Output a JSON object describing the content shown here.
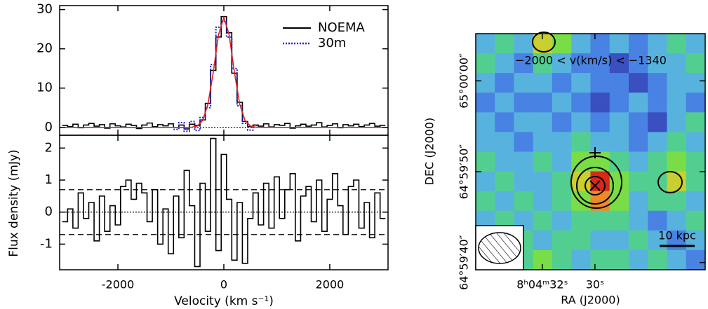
{
  "chart_data": [
    {
      "type": "step",
      "x": [
        -3000,
        -2900,
        -2800,
        -2700,
        -2600,
        -2500,
        -2400,
        -2300,
        -2200,
        -2100,
        -2000,
        -1900,
        -1800,
        -1700,
        -1600,
        -1500,
        -1400,
        -1300,
        -1200,
        -1100,
        -1000,
        -900,
        -800,
        -700,
        -600,
        -500,
        -400,
        -300,
        -200,
        -100,
        0,
        100,
        200,
        300,
        400,
        500,
        600,
        700,
        800,
        900,
        1000,
        1100,
        1200,
        1300,
        1400,
        1500,
        1600,
        1700,
        1800,
        1900,
        2000,
        2100,
        2200,
        2300,
        2400,
        2500,
        2600,
        2700,
        2800,
        2900,
        3000
      ],
      "series": [
        {
          "name": "NOEMA",
          "color": "#000000",
          "style": "solid",
          "drawstyle": "steps",
          "values": [
            0.5,
            0.2,
            0.8,
            -0.1,
            0.6,
            1.0,
            0.3,
            0.7,
            -0.2,
            0.9,
            0.4,
            0.1,
            0.8,
            0.5,
            -0.3,
            0.6,
            1.1,
            0.2,
            0.7,
            0.4,
            0.9,
            0.0,
            0.6,
            -0.4,
            0.8,
            0.5,
            1.9,
            6.1,
            14.5,
            23.0,
            28.2,
            24.1,
            13.8,
            6.4,
            1.5,
            0.2,
            0.6,
            0.3,
            0.9,
            0.1,
            0.7,
            0.5,
            1.0,
            -0.2,
            0.4,
            0.8,
            0.3,
            0.6,
            1.2,
            0.1,
            0.5,
            0.9,
            -0.1,
            0.7,
            0.4,
            0.8,
            0.2,
            0.6,
            1.0,
            0.3,
            0.5
          ]
        },
        {
          "name": "30m",
          "color": "#1f1fd0",
          "style": "dotted",
          "drawstyle": "steps",
          "values": [
            null,
            null,
            null,
            null,
            null,
            null,
            null,
            null,
            null,
            null,
            null,
            null,
            null,
            null,
            null,
            null,
            null,
            null,
            null,
            null,
            null,
            -0.5,
            1.2,
            -1.0,
            1.5,
            -0.8,
            2.5,
            5.0,
            16.0,
            25.5,
            27.0,
            23.0,
            15.0,
            5.5,
            1.0,
            -0.7,
            0.5,
            null,
            null,
            null,
            null,
            null,
            null,
            null,
            null,
            null,
            null,
            null,
            null,
            null,
            null,
            null,
            null,
            null,
            null,
            null,
            null,
            null,
            null,
            null,
            null
          ]
        },
        {
          "color": "#e02020",
          "style": "solid",
          "drawstyle": "line",
          "values": [
            0,
            0,
            0,
            0,
            0,
            0,
            0,
            0,
            0,
            0,
            0,
            0,
            0,
            0,
            0,
            0,
            0,
            0,
            0,
            0,
            0,
            0,
            0,
            0,
            0.05,
            0.37,
            1.76,
            5.9,
            14.0,
            23.6,
            28.0,
            23.6,
            14.0,
            5.9,
            1.76,
            0.37,
            0.05,
            0,
            0,
            0,
            0,
            0,
            0,
            0,
            0,
            0,
            0,
            0,
            0,
            0,
            0,
            0,
            0,
            0,
            0,
            0,
            0,
            0,
            0,
            0,
            0
          ]
        }
      ],
      "xlim": [
        -3100,
        3100
      ],
      "xticks": [
        -2000,
        0,
        2000
      ],
      "ylim": [
        -2,
        31
      ],
      "yticks": [
        0,
        10,
        20,
        30
      ],
      "hlines": [
        {
          "value": 0,
          "style": "dotted"
        }
      ],
      "legend": "upper right"
    },
    {
      "type": "step",
      "x": [
        -3000,
        -2900,
        -2800,
        -2700,
        -2600,
        -2500,
        -2400,
        -2300,
        -2200,
        -2100,
        -2000,
        -1900,
        -1800,
        -1700,
        -1600,
        -1500,
        -1400,
        -1300,
        -1200,
        -1100,
        -1000,
        -900,
        -800,
        -700,
        -600,
        -500,
        -400,
        -300,
        -200,
        -100,
        0,
        100,
        200,
        300,
        400,
        500,
        600,
        700,
        800,
        900,
        1000,
        1100,
        1200,
        1300,
        1400,
        1500,
        1600,
        1700,
        1800,
        1900,
        2000,
        2100,
        2200,
        2300,
        2400,
        2500,
        2600,
        2700,
        2800,
        2900,
        3000
      ],
      "series": [
        {
          "color": "#000000",
          "style": "solid",
          "drawstyle": "steps",
          "values": [
            -0.3,
            0.1,
            -0.5,
            0.6,
            -0.2,
            0.3,
            -0.9,
            0.5,
            -0.6,
            0.2,
            -0.4,
            0.8,
            1.0,
            0.4,
            0.9,
            0.6,
            -0.3,
            0.7,
            -1.0,
            0.1,
            -1.3,
            0.5,
            -0.8,
            1.3,
            0.2,
            -1.7,
            0.9,
            -0.6,
            2.3,
            -1.2,
            1.8,
            0.4,
            -1.5,
            0.3,
            -1.6,
            -0.2,
            0.6,
            -0.4,
            0.9,
            -0.5,
            1.1,
            -0.2,
            0.7,
            1.2,
            -0.9,
            0.5,
            0.8,
            -0.3,
            1.0,
            -0.6,
            0.4,
            1.2,
            0.2,
            -0.7,
            0.8,
            1.0,
            -0.5,
            0.3,
            -0.8,
            0.6,
            -0.2
          ]
        }
      ],
      "xlim": [
        -3100,
        3100
      ],
      "xticks": [
        -2000,
        0,
        2000
      ],
      "ylim": [
        -1.8,
        2.4
      ],
      "yticks": [
        -1,
        0,
        1,
        2
      ],
      "hlines": [
        {
          "value": 0,
          "style": "dotted"
        },
        {
          "value": 0.7,
          "style": "dashed"
        },
        {
          "value": -0.7,
          "style": "dashed"
        }
      ],
      "xlabel": "Velocity (km s⁻¹)",
      "ylabel": "Flux density (mJy)"
    },
    {
      "type": "heatmap",
      "xlim": [
        34.53,
        25.81
      ],
      "ylim": [
        39.2,
        65.2
      ],
      "xticks": [
        {
          "value": 32,
          "label": "8ʰ04ᵐ32ˢ"
        },
        {
          "value": 30,
          "label": "30ˢ"
        }
      ],
      "yticks": [
        {
          "value": 40,
          "label": "64°59′40″"
        },
        {
          "value": 50,
          "label": "64°59′50″"
        },
        {
          "value": 60,
          "label": "65°00′00″"
        }
      ],
      "xlabel": "RA (J2000)",
      "ylabel": "DEC (J2000)",
      "annotation": "−2000 < v(km/s) < −1340",
      "scale_bar": "10 kpc",
      "zlim": [
        -2,
        5
      ],
      "colormap": [
        "#3a4fc0",
        "#4a8ae8",
        "#5cc4d8",
        "#4ad85a",
        "#b8e430",
        "#f09a2a",
        "#d8281a"
      ],
      "z": [
        [
          0,
          1,
          0,
          3,
          2,
          0,
          -1,
          0,
          -1,
          0,
          1,
          0
        ],
        [
          1,
          0,
          -1,
          1,
          0,
          -1,
          -1,
          -2,
          -1,
          0,
          0,
          1
        ],
        [
          0,
          -1,
          0,
          0,
          -1,
          0,
          -1,
          -1,
          -2,
          -1,
          0,
          0
        ],
        [
          -1,
          0,
          -1,
          -1,
          0,
          -1,
          -2,
          -1,
          0,
          -1,
          0,
          -1
        ],
        [
          0,
          -1,
          0,
          0,
          -1,
          0,
          -1,
          0,
          -1,
          -2,
          0,
          1
        ],
        [
          0,
          0,
          -1,
          0,
          0,
          1,
          0,
          0,
          -1,
          0,
          1,
          0
        ],
        [
          1,
          0,
          0,
          1,
          0,
          2,
          2,
          1,
          0,
          1,
          2,
          1
        ],
        [
          0,
          1,
          0,
          0,
          1,
          3,
          5,
          2,
          1,
          1,
          3,
          1
        ],
        [
          1,
          0,
          1,
          0,
          1,
          2,
          4,
          2,
          0,
          1,
          1,
          0
        ],
        [
          0,
          1,
          0,
          1,
          0,
          1,
          1,
          1,
          0,
          -1,
          0,
          1
        ],
        [
          1,
          0,
          1,
          0,
          1,
          1,
          0,
          0,
          1,
          0,
          -1,
          0
        ],
        [
          0,
          1,
          1,
          2,
          1,
          0,
          1,
          1,
          0,
          1,
          0,
          -1
        ]
      ]
    }
  ]
}
